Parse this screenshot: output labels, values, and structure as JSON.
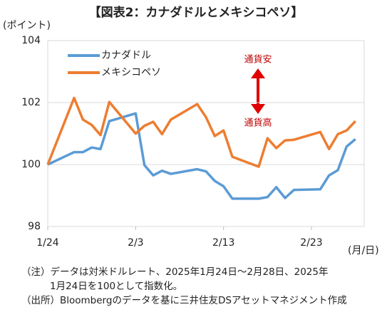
{
  "chart_data": {
    "type": "line",
    "title": "【図表2：カナダドルとメキシコペソ】",
    "y_axis_label": "(ポイント)",
    "x_axis_label": "(月/日)",
    "x": [
      0,
      3,
      4,
      5,
      6,
      7,
      10,
      11,
      12,
      13,
      14,
      17,
      18,
      19,
      20,
      21,
      24,
      25,
      26,
      27,
      28,
      31,
      32,
      33,
      34,
      35
    ],
    "xlim": [
      0,
      36
    ],
    "xticks": [
      {
        "value": 0,
        "label": "1/24"
      },
      {
        "value": 10,
        "label": "2/3"
      },
      {
        "value": 20,
        "label": "2/13"
      },
      {
        "value": 30,
        "label": "2/23"
      }
    ],
    "ylim": [
      98,
      104
    ],
    "yticks": [
      98,
      100,
      102,
      104
    ],
    "grid": true,
    "series": [
      {
        "name": "カナダドル",
        "color": "#5b9bd5",
        "values": [
          100,
          100.4,
          100.4,
          100.55,
          100.5,
          101.4,
          101.65,
          99.98,
          99.65,
          99.8,
          99.7,
          99.85,
          99.78,
          99.47,
          99.3,
          98.9,
          98.9,
          98.95,
          99.27,
          98.92,
          99.18,
          99.2,
          99.65,
          99.82,
          100.58,
          100.82
        ]
      },
      {
        "name": "メキシコペソ",
        "color": "#ed7d31",
        "values": [
          100,
          102.15,
          101.45,
          101.28,
          100.95,
          102.02,
          101.0,
          101.25,
          101.38,
          100.98,
          101.45,
          101.95,
          101.53,
          100.92,
          101.1,
          100.25,
          99.93,
          100.85,
          100.53,
          100.78,
          100.8,
          101.05,
          100.5,
          100.98,
          101.1,
          101.4
        ]
      }
    ],
    "annotations": [
      "通貨安",
      "通貨高"
    ],
    "notes": [
      "（注）データは対米ドルレート、2025年1月24日～2月28日、2025年",
      "1月24日を100として指数化。",
      "（出所）Bloombergのデータを基に三井住友DSアセットマネジメント作成"
    ]
  }
}
